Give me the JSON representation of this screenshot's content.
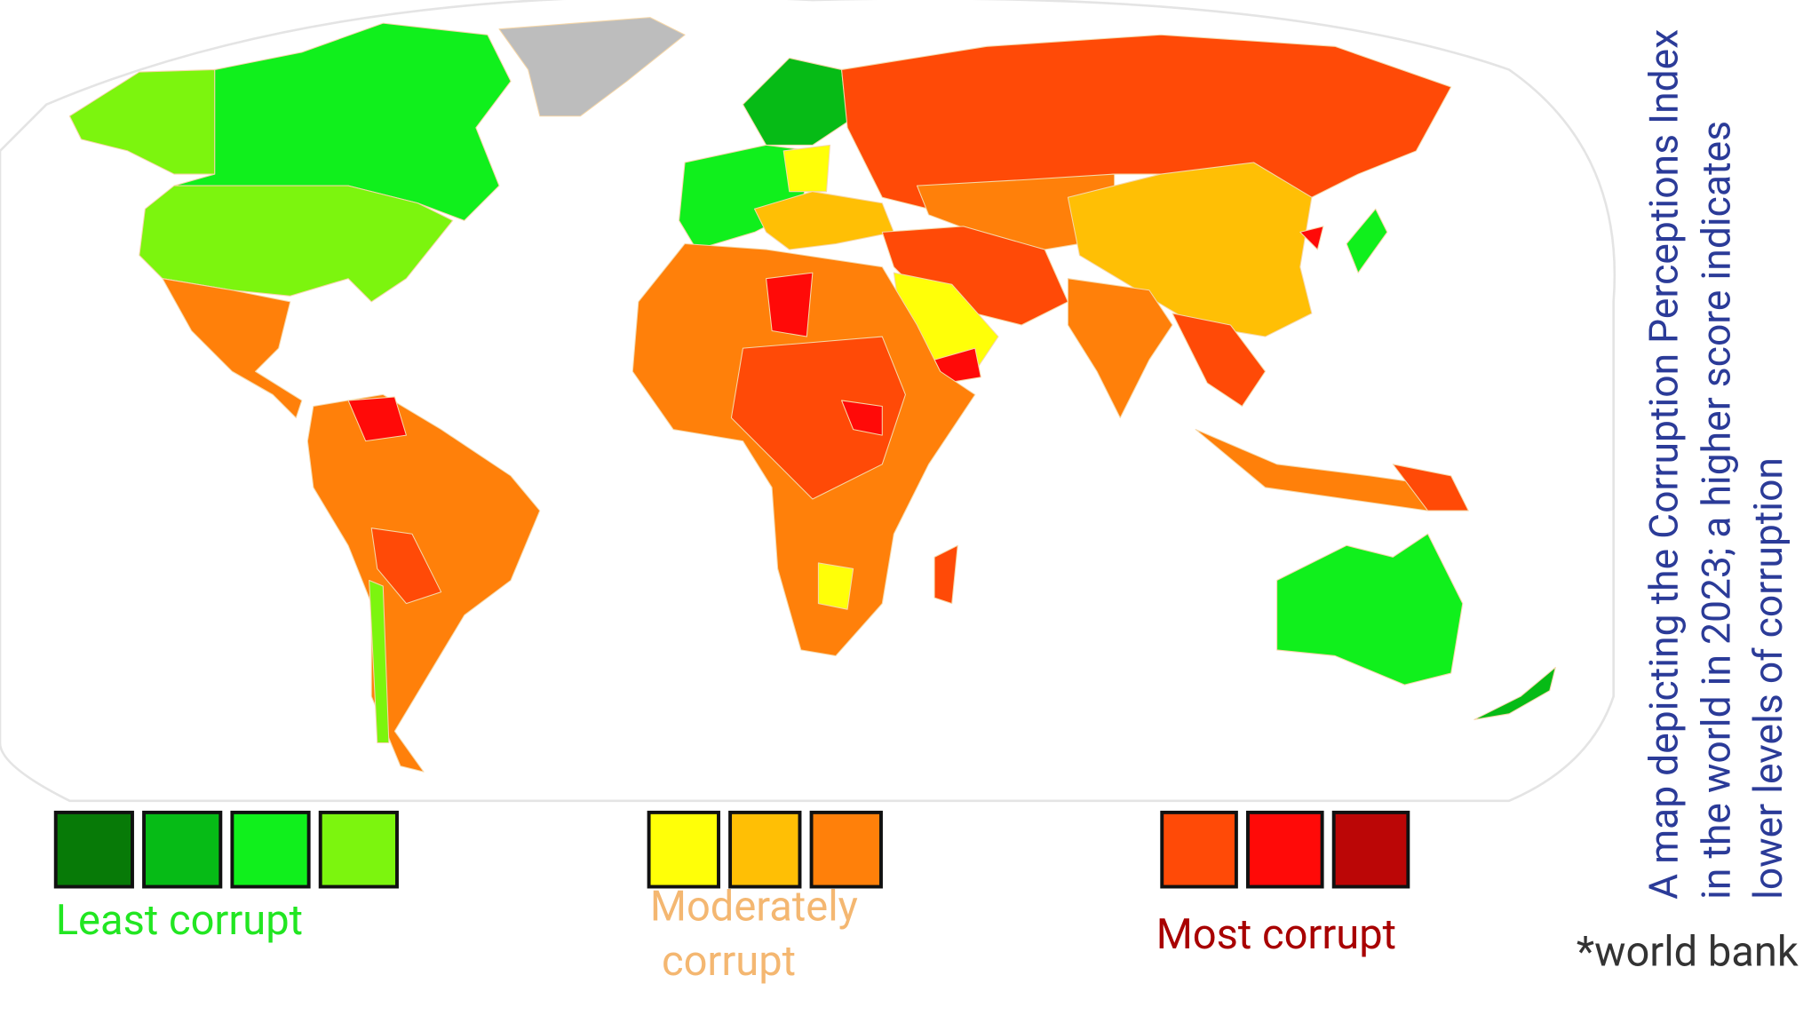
{
  "legend": [
    {
      "label_lines": [
        "Least corrupt"
      ],
      "text_color": "#22e622",
      "swatches": [
        "#077a07",
        "#06bb16",
        "#10f01c",
        "#7cf50e"
      ]
    },
    {
      "label_lines": [
        "Moderately",
        "corrupt"
      ],
      "text_color": "#f4b771",
      "swatches": [
        "#ffff08",
        "#ffbf05",
        "#ff800a"
      ]
    },
    {
      "label_lines": [
        "Most corrupt"
      ],
      "text_color": "#a80000",
      "swatches": [
        "#ff4a07",
        "#ff0a08",
        "#bb0606"
      ]
    }
  ],
  "caption": [
    "A map depicting the Corruption Perceptions Index",
    "in the world in 2023; a higher score indicates",
    "lower levels of corruption"
  ],
  "source": "*world bank"
}
